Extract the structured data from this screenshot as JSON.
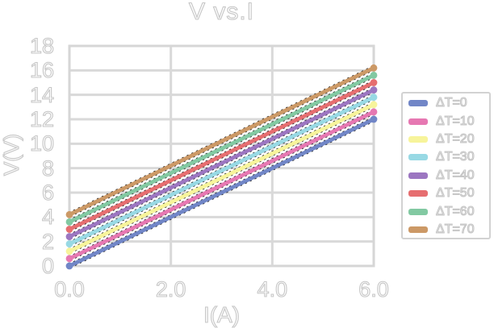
{
  "chart_data": {
    "type": "line",
    "title": "V vs.I",
    "xlabel": "I(A)",
    "ylabel": "V(V)",
    "xlim": [
      0,
      6
    ],
    "ylim": [
      0,
      18
    ],
    "grid": true,
    "legend_position": "right",
    "x_ticks": [
      {
        "value": 0,
        "label": "0.0"
      },
      {
        "value": 2,
        "label": "2.0"
      },
      {
        "value": 4,
        "label": "4.0"
      },
      {
        "value": 6,
        "label": "6.0"
      }
    ],
    "y_ticks": [
      {
        "value": 0,
        "label": "0"
      },
      {
        "value": 2,
        "label": "2"
      },
      {
        "value": 4,
        "label": "4"
      },
      {
        "value": 6,
        "label": "6"
      },
      {
        "value": 8,
        "label": "8"
      },
      {
        "value": 10,
        "label": "10"
      },
      {
        "value": 12,
        "label": "12"
      },
      {
        "value": 14,
        "label": "14"
      },
      {
        "value": 16,
        "label": "16"
      },
      {
        "value": 18,
        "label": "18"
      }
    ],
    "x": [
      0,
      6
    ],
    "series": [
      {
        "name": "ΔT=0",
        "color": "#7186c7",
        "values": [
          0.0,
          12.0
        ]
      },
      {
        "name": "ΔT=10",
        "color": "#e678b2",
        "values": [
          0.6,
          12.6
        ]
      },
      {
        "name": "ΔT=20",
        "color": "#f7f49b",
        "values": [
          1.2,
          13.2
        ]
      },
      {
        "name": "ΔT=30",
        "color": "#98d9e4",
        "values": [
          1.8,
          13.8
        ]
      },
      {
        "name": "ΔT=40",
        "color": "#9c76c1",
        "values": [
          2.4,
          14.4
        ]
      },
      {
        "name": "ΔT=50",
        "color": "#e66e70",
        "values": [
          3.0,
          15.0
        ]
      },
      {
        "name": "ΔT=60",
        "color": "#82c9a2",
        "values": [
          3.6,
          15.6
        ]
      },
      {
        "name": "ΔT=70",
        "color": "#cc9966",
        "values": [
          4.2,
          16.2
        ]
      }
    ],
    "trendline": "black dashed line under each series"
  },
  "colors": {
    "grid": "#d9d9d9",
    "frame": "#d6d6d6",
    "text_outline": "#c6c6c6",
    "text_fill": "#ffffff",
    "legend_border": "#d2d2d2",
    "trend_dash": "#1f1f1f"
  }
}
